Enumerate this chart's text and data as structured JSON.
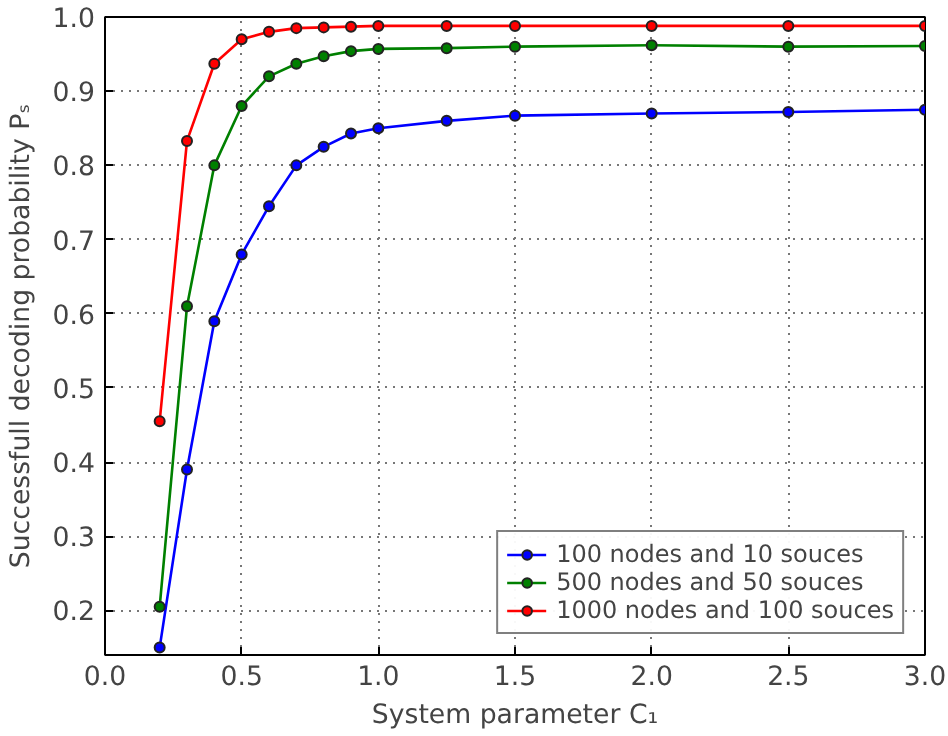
{
  "chart_data": {
    "type": "line",
    "xlabel": "System parameter C₁",
    "ylabel": "Successfull decoding probability Pₛ",
    "x": [
      0.2,
      0.3,
      0.4,
      0.5,
      0.6,
      0.7,
      0.8,
      0.9,
      1.0,
      1.25,
      1.5,
      2.0,
      2.5,
      3.0
    ],
    "series": [
      {
        "name": "100 nodes and 10 souces",
        "color": "#0000ff",
        "values": [
          0.15,
          0.39,
          0.59,
          0.68,
          0.745,
          0.8,
          0.825,
          0.843,
          0.85,
          0.86,
          0.867,
          0.87,
          0.872,
          0.875
        ]
      },
      {
        "name": "500 nodes and 50 souces",
        "color": "#008000",
        "values": [
          0.205,
          0.61,
          0.8,
          0.88,
          0.92,
          0.937,
          0.947,
          0.954,
          0.957,
          0.958,
          0.96,
          0.962,
          0.96,
          0.961
        ]
      },
      {
        "name": "1000 nodes and 100 souces",
        "color": "#ff0000",
        "values": [
          0.455,
          0.833,
          0.937,
          0.97,
          0.98,
          0.985,
          0.986,
          0.987,
          0.988,
          0.988,
          0.988,
          0.988,
          0.988,
          0.988
        ]
      }
    ],
    "xlim": [
      0.0,
      3.0
    ],
    "ylim": [
      0.14,
      1.0
    ],
    "xticks": [
      {
        "value": 0,
        "label": "0.0"
      },
      0.5,
      {
        "value": 1,
        "label": "1.0"
      },
      1.5,
      {
        "value": 2,
        "label": "2.0"
      },
      2.5,
      {
        "value": 3,
        "label": "3.0"
      }
    ],
    "yticks": [
      0.2,
      0.3,
      0.4,
      0.5,
      0.6,
      0.7,
      0.8,
      0.9,
      {
        "value": 1,
        "label": "1.0"
      }
    ],
    "grid": true,
    "legend": "bottom right",
    "marker": "circle",
    "line_style": "solid"
  }
}
